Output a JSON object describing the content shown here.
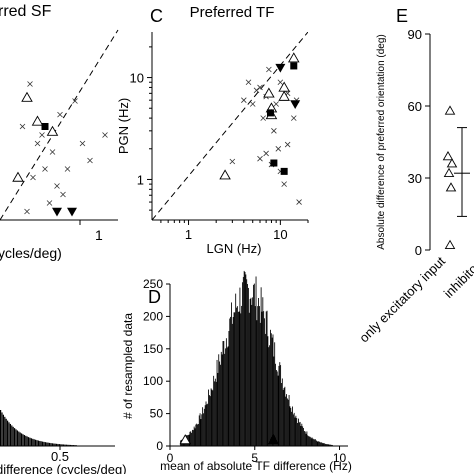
{
  "figure": {
    "panels": [
      {
        "letter": "C",
        "title": "Preferred TF"
      },
      {
        "letter": "D",
        "title": ""
      },
      {
        "letter": "E",
        "title": ""
      }
    ],
    "partial_texts": {
      "top_left_title": "rred SF",
      "top_left_xlabel": "ycles/deg)",
      "bottom_left_xlabel": "difference (cycles/deg)"
    }
  },
  "chart_data": [
    {
      "panel": "partial-left-top",
      "type": "scatter",
      "title": "rred SF",
      "xlabel": "ycles/deg)",
      "x_ticks": [
        "1"
      ],
      "series": [
        {
          "marker": "cross",
          "points": [
            [
              0.2,
              0.8
            ],
            [
              0.28,
              0.5
            ],
            [
              0.35,
              0.4
            ],
            [
              0.4,
              0.62
            ],
            [
              0.5,
              0.7
            ],
            [
              0.15,
              0.55
            ],
            [
              0.3,
              0.3
            ],
            [
              0.45,
              0.3
            ],
            [
              0.55,
              0.45
            ],
            [
              0.6,
              0.35
            ],
            [
              0.25,
              0.45
            ],
            [
              0.38,
              0.2
            ],
            [
              0.7,
              0.5
            ],
            [
              0.22,
              0.25
            ],
            [
              0.33,
              0.1
            ],
            [
              0.42,
              0.15
            ],
            [
              0.18,
              0.05
            ]
          ]
        },
        {
          "marker": "triangle-up-open",
          "points": [
            [
              0.18,
              0.72
            ],
            [
              0.25,
              0.58
            ],
            [
              0.12,
              0.25
            ],
            [
              0.35,
              0.52
            ]
          ]
        },
        {
          "marker": "square-filled",
          "points": [
            [
              0.3,
              0.55
            ]
          ]
        },
        {
          "marker": "triangle-down-filled",
          "points": [
            [
              0.38,
              0.05
            ],
            [
              0.48,
              0.05
            ]
          ]
        }
      ]
    },
    {
      "panel": "C",
      "type": "scatter",
      "title": "Preferred TF",
      "xlabel": "LGN (Hz)",
      "ylabel": "PGN (Hz)",
      "xscale": "log",
      "yscale": "log",
      "xlim": [
        0.4,
        20
      ],
      "ylim": [
        0.4,
        28
      ],
      "x_ticks": [
        1,
        10
      ],
      "y_ticks": [
        1,
        10
      ],
      "diagonal": "dashed",
      "series": [
        {
          "marker": "cross",
          "points": [
            [
              4.5,
              9
            ],
            [
              6,
              8
            ],
            [
              7.5,
              12
            ],
            [
              10,
              9
            ],
            [
              12,
              7
            ],
            [
              5,
              5.5
            ],
            [
              6.5,
              4
            ],
            [
              8.5,
              3
            ],
            [
              9.5,
              2
            ],
            [
              12,
              2.2
            ],
            [
              7,
              1.8
            ],
            [
              8,
              1.4
            ],
            [
              10,
              1.2
            ],
            [
              11,
              0.9
            ],
            [
              6,
              1.6
            ],
            [
              14,
              4
            ],
            [
              15,
              6
            ],
            [
              7,
              6.5
            ],
            [
              9,
              5.5
            ],
            [
              5.5,
              7.5
            ],
            [
              4,
              6
            ],
            [
              16,
              0.6
            ],
            [
              3,
              1.5
            ]
          ]
        },
        {
          "marker": "triangle-up-open",
          "points": [
            [
              14,
              15.5
            ],
            [
              11,
              8
            ],
            [
              8,
              5
            ],
            [
              8,
              4.3
            ],
            [
              7.5,
              7
            ],
            [
              11,
              6.5
            ],
            [
              2.5,
              1.1
            ]
          ]
        },
        {
          "marker": "square-filled",
          "points": [
            [
              14,
              13
            ],
            [
              7.8,
              4.5
            ],
            [
              8.5,
              1.45
            ],
            [
              11,
              1.2
            ]
          ]
        },
        {
          "marker": "triangle-down-filled",
          "points": [
            [
              10,
              12.5
            ],
            [
              14.5,
              5.5
            ]
          ]
        }
      ]
    },
    {
      "panel": "D",
      "type": "bar",
      "ylabel": "# of resampled data",
      "xlabel": "mean of absolute TF difference (Hz)",
      "xlim": [
        0,
        10.5
      ],
      "ylim": [
        0,
        250
      ],
      "x_ticks": [
        0,
        5,
        10
      ],
      "y_ticks": [
        0,
        50,
        100,
        150,
        200,
        250
      ],
      "histogram_shape": {
        "center": 4.6,
        "sd": 1.55,
        "peak": 240
      },
      "markers": [
        {
          "marker": "triangle-up-open",
          "x": 0.9
        },
        {
          "marker": "triangle-up-filled",
          "x": 6.1
        }
      ]
    },
    {
      "panel": "E",
      "type": "scatter",
      "ylabel": "Absolute difference of preferred orientation (deg)",
      "ylim": [
        0,
        90
      ],
      "y_ticks": [
        0,
        30,
        60,
        90
      ],
      "categories": [
        "only excitatory input",
        "inhibitory"
      ],
      "series": [
        {
          "marker": "triangle-up-open",
          "values": [
            58,
            39,
            36,
            32,
            26,
            2
          ]
        }
      ],
      "mean": 32,
      "error_bar": [
        14,
        51
      ]
    },
    {
      "panel": "partial-left-bottom",
      "type": "bar",
      "xlabel": "difference (cycles/deg)",
      "x_ticks": [
        "0.5"
      ]
    }
  ]
}
